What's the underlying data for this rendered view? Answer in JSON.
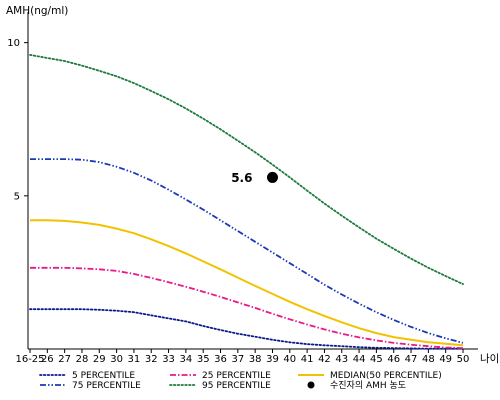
{
  "chart_data": {
    "type": "line",
    "ylabel": "AMH(ng/ml)",
    "xlabel": "나이",
    "x_tick_labels": [
      "16-25",
      "26",
      "27",
      "28",
      "29",
      "30",
      "31",
      "32",
      "33",
      "34",
      "35",
      "36",
      "37",
      "38",
      "39",
      "40",
      "41",
      "42",
      "43",
      "44",
      "45",
      "46",
      "47",
      "48",
      "49",
      "50"
    ],
    "x_range": [
      25,
      50
    ],
    "ylim": [
      0,
      11
    ],
    "y_ticks": [
      5,
      10
    ],
    "grid": false,
    "series": [
      {
        "name": "5 PERCENTILE",
        "color": "#0a1a8c",
        "dash": "dot",
        "x": [
          25,
          26,
          27,
          28,
          29,
          30,
          31,
          32,
          33,
          34,
          35,
          36,
          37,
          38,
          39,
          40,
          41,
          42,
          43,
          44,
          45,
          46,
          47,
          48,
          49,
          50
        ],
        "values": [
          1.3,
          1.3,
          1.3,
          1.3,
          1.28,
          1.25,
          1.2,
          1.1,
          1.0,
          0.9,
          0.75,
          0.62,
          0.5,
          0.4,
          0.3,
          0.22,
          0.16,
          0.12,
          0.09,
          0.06,
          0.04,
          0.03,
          0.02,
          0.01,
          0.01,
          0.01
        ]
      },
      {
        "name": "25 PERCENTILE",
        "color": "#e8198b",
        "dash": "dashdot",
        "x": [
          25,
          26,
          27,
          28,
          29,
          30,
          31,
          32,
          33,
          34,
          35,
          36,
          37,
          38,
          39,
          40,
          41,
          42,
          43,
          44,
          45,
          46,
          47,
          48,
          49,
          50
        ],
        "values": [
          2.65,
          2.65,
          2.65,
          2.63,
          2.6,
          2.55,
          2.45,
          2.32,
          2.18,
          2.03,
          1.87,
          1.7,
          1.52,
          1.34,
          1.15,
          0.97,
          0.8,
          0.64,
          0.5,
          0.38,
          0.28,
          0.2,
          0.14,
          0.09,
          0.05,
          0.03
        ]
      },
      {
        "name": "MEDIAN(50 PERCENTILE)",
        "color": "#f2c200",
        "dash": "solid",
        "x": [
          25,
          26,
          27,
          28,
          29,
          30,
          31,
          32,
          33,
          34,
          35,
          36,
          37,
          38,
          39,
          40,
          41,
          42,
          43,
          44,
          45,
          46,
          47,
          48,
          49,
          50
        ],
        "values": [
          4.2,
          4.2,
          4.18,
          4.13,
          4.05,
          3.93,
          3.78,
          3.58,
          3.36,
          3.12,
          2.86,
          2.6,
          2.33,
          2.06,
          1.8,
          1.54,
          1.3,
          1.08,
          0.87,
          0.68,
          0.52,
          0.39,
          0.3,
          0.22,
          0.17,
          0.12
        ]
      },
      {
        "name": "75 PERCENTILE",
        "color": "#1a3ab5",
        "dash": "dashdotdot",
        "x": [
          25,
          26,
          27,
          28,
          29,
          30,
          31,
          32,
          33,
          34,
          35,
          36,
          37,
          38,
          39,
          40,
          41,
          42,
          43,
          44,
          45,
          46,
          47,
          48,
          49,
          50
        ],
        "values": [
          6.2,
          6.2,
          6.2,
          6.18,
          6.1,
          5.95,
          5.75,
          5.5,
          5.2,
          4.88,
          4.55,
          4.2,
          3.85,
          3.5,
          3.15,
          2.8,
          2.45,
          2.1,
          1.78,
          1.48,
          1.2,
          0.95,
          0.72,
          0.52,
          0.35,
          0.2
        ]
      },
      {
        "name": "95 PERCENTILE",
        "color": "#1e7a3c",
        "dash": "dot",
        "x": [
          25,
          26,
          27,
          28,
          29,
          30,
          31,
          32,
          33,
          34,
          35,
          36,
          37,
          38,
          39,
          40,
          41,
          42,
          43,
          44,
          45,
          46,
          47,
          48,
          49,
          50
        ],
        "values": [
          9.6,
          9.5,
          9.4,
          9.25,
          9.08,
          8.9,
          8.68,
          8.42,
          8.15,
          7.85,
          7.52,
          7.17,
          6.8,
          6.42,
          6.02,
          5.6,
          5.17,
          4.75,
          4.35,
          3.97,
          3.6,
          3.27,
          2.95,
          2.65,
          2.38,
          2.12
        ]
      }
    ],
    "annotation": {
      "name": "수진자의 AMH 농도",
      "x": 39,
      "y": 5.6,
      "label": "5.6",
      "color": "#000000"
    },
    "legend": {
      "position": "bottom",
      "order": [
        "5 PERCENTILE",
        "25 PERCENTILE",
        "MEDIAN(50 PERCENTILE)",
        "75 PERCENTILE",
        "95 PERCENTILE",
        "수진자의 AMH 농도"
      ]
    }
  }
}
